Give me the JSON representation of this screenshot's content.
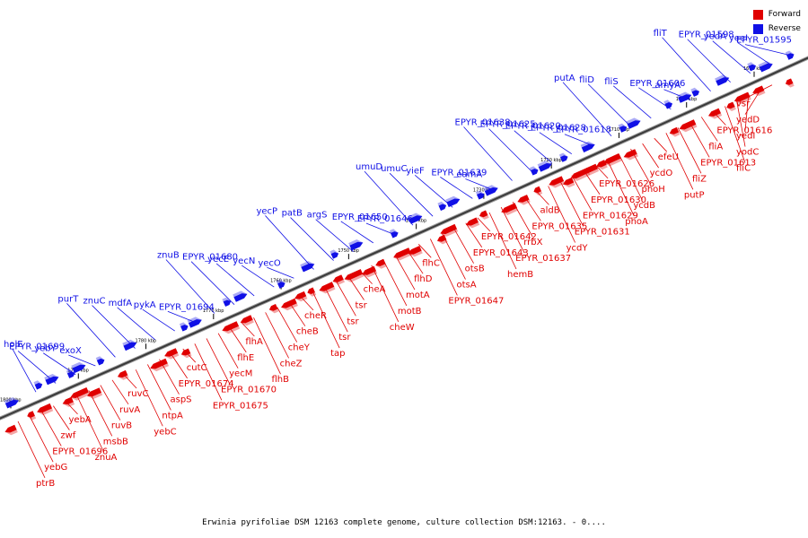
{
  "caption": "Erwinia pyrifoliae DSM 12163 complete genome, culture collection DSM:12163. - 0....",
  "legend": {
    "forward": {
      "label": "Forward",
      "color": "#e00000"
    },
    "reverse": {
      "label": "Reverse",
      "color": "#1010e6"
    }
  },
  "ticks": [
    "1690 kbp",
    "1700 kbp",
    "1710 kbp",
    "1720 kbp",
    "1730 kbp",
    "1740 kbp",
    "1750 kbp",
    "1760 kbp",
    "1770 kbp",
    "1780 kbp",
    "1790 kbp",
    "1800 kbp"
  ],
  "reverse_labels": [
    "EPYR_01595",
    "yeeI",
    "yedA",
    "EPYR_01598",
    "fliT",
    "amyA",
    "EPYR_01606",
    "fliS",
    "fliD",
    "putA",
    "EPYR_01618",
    "EPYR_01628",
    "EPYR_01620",
    "EPYR_01625",
    "EPYR_01638",
    "eamA",
    "EPYR_01639",
    "yieF",
    "umuC",
    "umuD",
    "EPYR_01646",
    "EPYR_01650",
    "argS",
    "patB",
    "yecP",
    "yecO",
    "yecN",
    "yecE",
    "EPYR_01680",
    "znuB",
    "EPYR_01694",
    "pykA",
    "mdfA",
    "znuC",
    "purT",
    "exoX",
    "yebY",
    "EPYR_01699",
    "holE"
  ],
  "forward_labels": [
    "vsr",
    "yedD",
    "yedI",
    "yodC",
    "fliC",
    "EPYR_01616",
    "fliA",
    "EPYR_01613",
    "fliZ",
    "putP",
    "efeU",
    "ycdO",
    "phoH",
    "ycdB",
    "phoA",
    "EPYR_01626",
    "EPYR_01630",
    "EPYR_01629",
    "EPYR_01631",
    "ycdY",
    "aldB",
    "EPYR_01635",
    "rrbX",
    "EPYR_01637",
    "hemB",
    "EPYR_01642",
    "EPYR_01643",
    "otsB",
    "otsA",
    "EPYR_01647",
    "flhC",
    "flhD",
    "motA",
    "motB",
    "cheW",
    "cheA",
    "tsr",
    "tsr",
    "tsr",
    "tap",
    "cheR",
    "cheB",
    "cheY",
    "cheZ",
    "flhB",
    "flhA",
    "flhE",
    "yecM",
    "EPYR_01670",
    "EPYR_01675",
    "cutC",
    "EPYR_01674",
    "aspS",
    "ntpA",
    "yebC",
    "ruvC",
    "ruvA",
    "ruvB",
    "msbB",
    "znuA",
    "yebA",
    "zwf",
    "EPYR_01696",
    "yebG",
    "ptrB"
  ]
}
